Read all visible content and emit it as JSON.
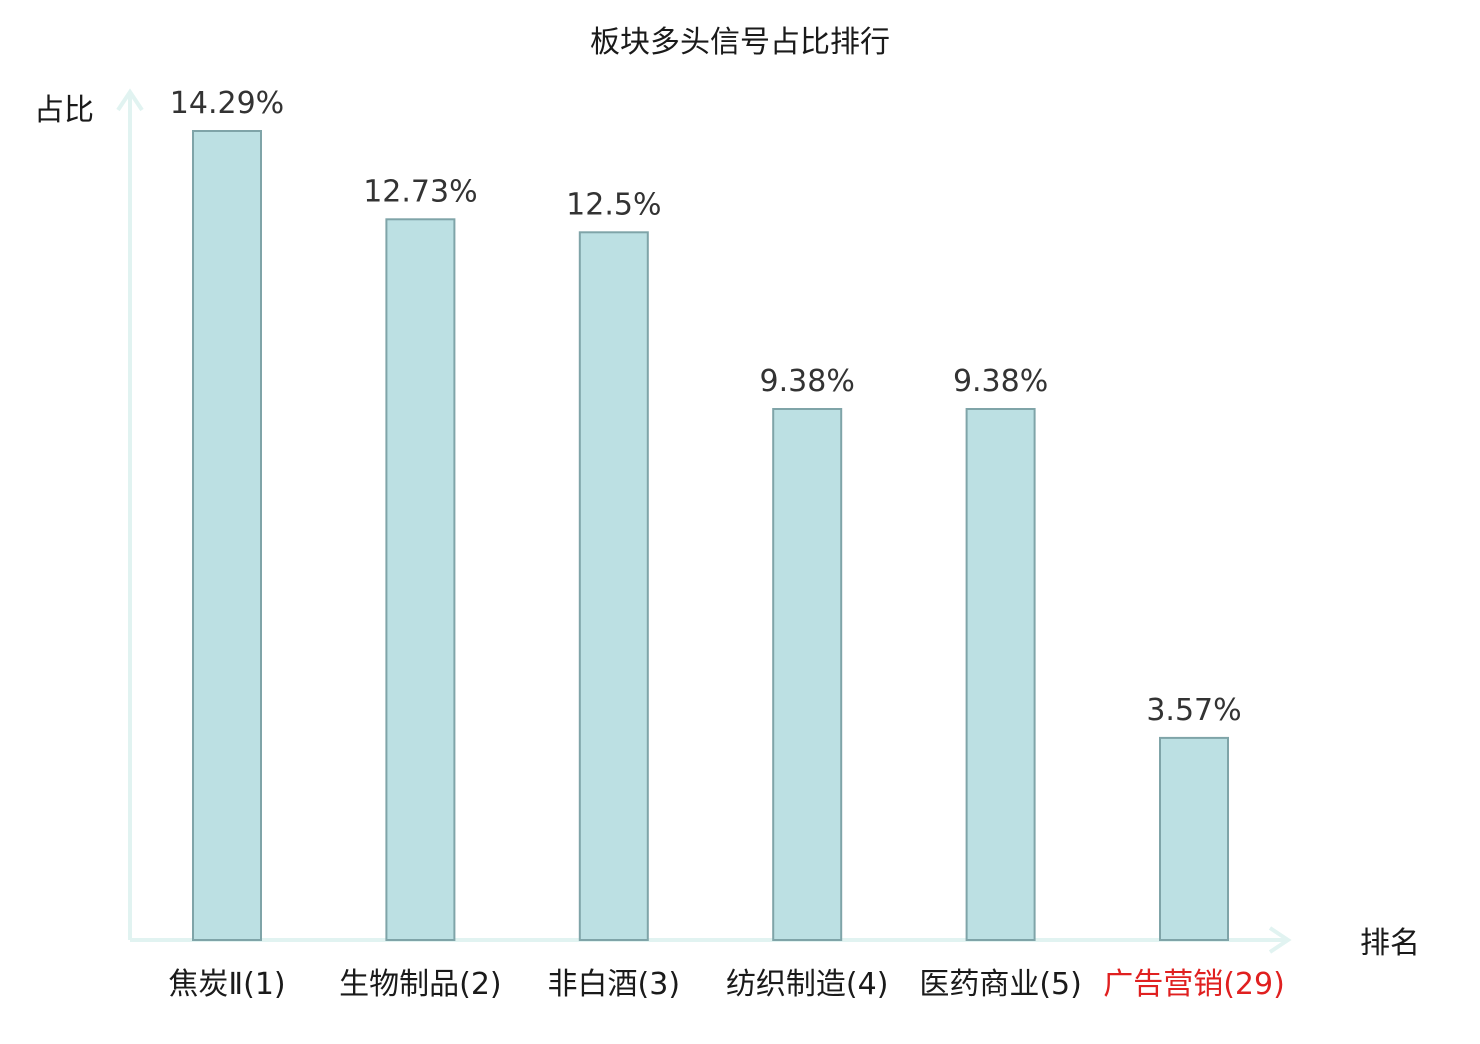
{
  "chart_data": {
    "type": "bar",
    "title": "板块多头信号占比排行",
    "xlabel": "排名",
    "ylabel": "占比",
    "categories": [
      "焦炭Ⅱ(1)",
      "生物制品(2)",
      "非白酒(3)",
      "纺织制造(4)",
      "医药商业(5)",
      "广告营销(29)"
    ],
    "values": [
      14.29,
      12.73,
      12.5,
      9.38,
      9.38,
      3.57
    ],
    "value_labels": [
      "14.29%",
      "12.73%",
      "12.5%",
      "9.38%",
      "9.38%",
      "3.57%"
    ],
    "highlight_index": 5,
    "ylim": [
      0,
      14.29
    ],
    "grid": false,
    "legend": "none",
    "colors": {
      "bar_fill": "#bce0e3",
      "bar_stroke": "#7fa4a8",
      "axis": "#e1f3f1",
      "label_default": "#1a1a1a",
      "label_highlight": "#e02020",
      "value_label": "#333333"
    }
  }
}
